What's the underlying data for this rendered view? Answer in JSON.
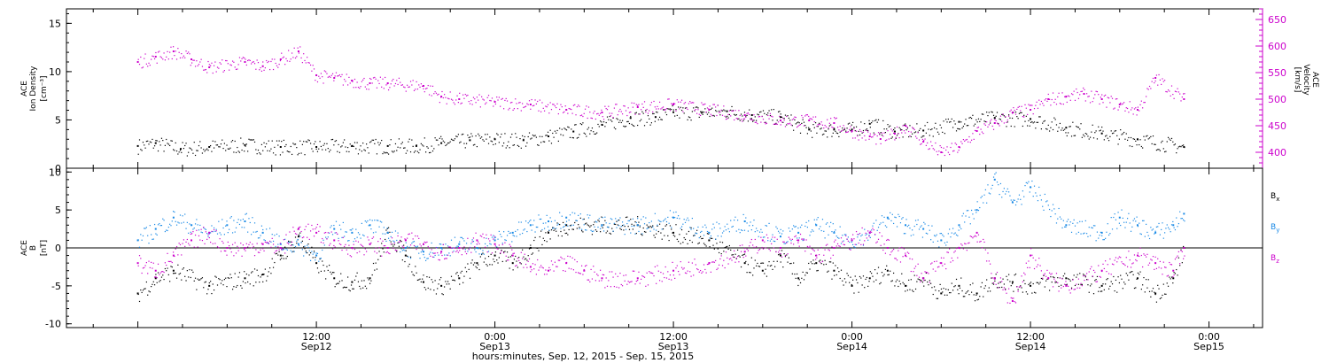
{
  "chart_data": [
    {
      "type": "scatter",
      "panel": "top",
      "ylabel": [
        "ACE",
        "Ion Density",
        "[cm⁻³]"
      ],
      "y2label": [
        "ACE",
        "Velocity",
        "[km/s]"
      ],
      "ylim": [
        0,
        16.5
      ],
      "y2lim": [
        370,
        670
      ],
      "yticks": [
        "0",
        "5",
        "10",
        "15"
      ],
      "y2ticks": [
        "400",
        "450",
        "500",
        "550",
        "600",
        "650"
      ],
      "colors": {
        "density": "#000000",
        "velocity": "#cc00cc"
      },
      "series": [
        {
          "key": "density",
          "color": "#000000",
          "x": [
            0,
            0.05,
            0.12,
            0.2,
            0.3,
            0.4,
            0.5,
            0.6,
            0.7,
            0.78,
            0.85,
            0.93,
            1.0,
            1.08,
            1.15,
            1.22,
            1.3,
            1.38,
            1.45,
            1.5,
            1.58,
            1.65,
            1.72,
            1.8,
            1.88,
            1.95,
            2.0,
            2.05,
            2.12,
            2.2,
            2.3,
            2.4,
            2.5,
            2.6,
            2.7,
            2.8,
            2.93
          ],
          "y": [
            2.3,
            2.6,
            2.0,
            2.2,
            2.4,
            2.2,
            2.2,
            2.3,
            2.3,
            2.3,
            2.6,
            2.9,
            3.0,
            2.9,
            3.3,
            3.8,
            4.5,
            5.2,
            5.3,
            5.8,
            5.8,
            5.9,
            5.5,
            5.3,
            4.0,
            4.0,
            4.0,
            4.6,
            3.8,
            3.9,
            4.8,
            5.2,
            5.1,
            4.2,
            3.6,
            3.0,
            2.2
          ]
        },
        {
          "key": "velocity",
          "color": "#cc00cc",
          "x": [
            0,
            0.05,
            0.1,
            0.15,
            0.2,
            0.3,
            0.35,
            0.4,
            0.45,
            0.5,
            0.55,
            0.6,
            0.65,
            0.7,
            0.8,
            0.85,
            0.9,
            1.0,
            1.1,
            1.2,
            1.3,
            1.4,
            1.5,
            1.6,
            1.7,
            1.8,
            1.88,
            1.95,
            2.0,
            2.05,
            2.08,
            2.12,
            2.15,
            2.2,
            2.25,
            2.3,
            2.35,
            2.4,
            2.45,
            2.5,
            2.55,
            2.6,
            2.65,
            2.7,
            2.75,
            2.8,
            2.85,
            2.93
          ],
          "y": [
            570,
            580,
            590,
            575,
            560,
            570,
            562,
            575,
            590,
            545,
            540,
            535,
            530,
            530,
            525,
            505,
            500,
            495,
            490,
            480,
            475,
            485,
            490,
            480,
            470,
            460,
            460,
            455,
            440,
            430,
            425,
            435,
            450,
            420,
            400,
            410,
            440,
            455,
            475,
            480,
            500,
            505,
            510,
            500,
            490,
            480,
            540,
            500
          ]
        }
      ]
    },
    {
      "type": "scatter",
      "panel": "bottom",
      "ylabel": [
        "ACE",
        "B",
        "[nT]"
      ],
      "ylim": [
        -10.5,
        10.5
      ],
      "yticks": [
        "-10",
        "-5",
        "0",
        "5",
        "10"
      ],
      "legend": [
        {
          "key": "bx",
          "label": "Bx",
          "base": "B",
          "sub": "x",
          "color": "#000000"
        },
        {
          "key": "by",
          "label": "By",
          "base": "B",
          "sub": "y",
          "color": "#1a8ae6"
        },
        {
          "key": "bz",
          "label": "Bz",
          "base": "B",
          "sub": "z",
          "color": "#cc00cc"
        }
      ],
      "series": [
        {
          "key": "bx",
          "color": "#000000",
          "x": [
            0,
            0.05,
            0.1,
            0.2,
            0.3,
            0.35,
            0.4,
            0.45,
            0.5,
            0.55,
            0.6,
            0.65,
            0.7,
            0.75,
            0.8,
            0.85,
            0.9,
            0.95,
            1.0,
            1.05,
            1.1,
            1.15,
            1.2,
            1.3,
            1.4,
            1.5,
            1.6,
            1.7,
            1.75,
            1.8,
            1.85,
            1.9,
            1.95,
            2.0,
            2.05,
            2.1,
            2.15,
            2.2,
            2.25,
            2.3,
            2.35,
            2.4,
            2.45,
            2.5,
            2.6,
            2.7,
            2.8,
            2.85,
            2.9,
            2.93
          ],
          "y": [
            -6,
            -4,
            -3,
            -5,
            -4,
            -3.5,
            -1,
            1.5,
            -2,
            -4,
            -4.5,
            -4,
            2,
            -1,
            -4.5,
            -5,
            -4,
            -2,
            -1,
            -2,
            0,
            2,
            3,
            3,
            3,
            2,
            1,
            -2,
            -3,
            -1,
            -4,
            -2,
            -3,
            -5,
            -4,
            -3,
            -5,
            -4,
            -6,
            -5,
            -6,
            -4,
            -4.5,
            -5,
            -4,
            -5,
            -4,
            -6,
            -4,
            0
          ]
        },
        {
          "key": "by",
          "color": "#1a8ae6",
          "x": [
            0,
            0.05,
            0.1,
            0.15,
            0.2,
            0.25,
            0.3,
            0.35,
            0.4,
            0.45,
            0.5,
            0.55,
            0.6,
            0.65,
            0.7,
            0.75,
            0.8,
            0.85,
            0.9,
            0.95,
            1.0,
            1.05,
            1.1,
            1.15,
            1.2,
            1.3,
            1.4,
            1.5,
            1.6,
            1.7,
            1.8,
            1.85,
            1.9,
            1.95,
            2.0,
            2.05,
            2.1,
            2.15,
            2.2,
            2.25,
            2.3,
            2.35,
            2.4,
            2.45,
            2.5,
            2.6,
            2.7,
            2.75,
            2.8,
            2.85,
            2.9,
            2.93
          ],
          "y": [
            1,
            2.5,
            4,
            3,
            2,
            3,
            3.5,
            2,
            0.5,
            0.5,
            -1,
            2.5,
            2,
            3,
            2,
            0,
            -0.5,
            0,
            0.5,
            0,
            1,
            2,
            3,
            3.5,
            4,
            3,
            3,
            4,
            2,
            3.5,
            1.5,
            2,
            3,
            2,
            1,
            2,
            4,
            3,
            2.5,
            1,
            3,
            5,
            9,
            6,
            8,
            3,
            2,
            4,
            3,
            2,
            3,
            4.5
          ]
        },
        {
          "key": "bz",
          "color": "#cc00cc",
          "x": [
            0,
            0.05,
            0.1,
            0.15,
            0.2,
            0.25,
            0.3,
            0.35,
            0.4,
            0.45,
            0.5,
            0.55,
            0.6,
            0.65,
            0.7,
            0.75,
            0.8,
            0.85,
            0.9,
            0.95,
            1.0,
            1.05,
            1.1,
            1.15,
            1.2,
            1.25,
            1.3,
            1.4,
            1.5,
            1.6,
            1.7,
            1.75,
            1.8,
            1.85,
            1.9,
            1.95,
            2.0,
            2.05,
            2.1,
            2.15,
            2.2,
            2.25,
            2.3,
            2.35,
            2.4,
            2.45,
            2.5,
            2.55,
            2.6,
            2.7,
            2.8,
            2.85,
            2.9,
            2.93
          ],
          "y": [
            -2,
            -3,
            -1,
            1,
            2,
            0,
            0,
            0.5,
            0,
            2.5,
            2,
            1,
            0,
            0.5,
            0,
            1,
            0.5,
            -0.5,
            0,
            1,
            0.5,
            -1,
            -2.5,
            -3,
            -2,
            -3,
            -4,
            -4,
            -3,
            -2,
            -0.5,
            1,
            0,
            1,
            -1,
            0,
            1,
            2,
            0,
            -1,
            -4,
            -2,
            0,
            2,
            -4,
            -7,
            -1,
            -4,
            -5,
            -3,
            -1,
            -2,
            -3,
            0
          ]
        }
      ]
    }
  ],
  "xaxis": {
    "label": "hours:minutes, Sep. 12, 2015 - Sep. 15, 2015",
    "range": [
      -0.2,
      3.15
    ],
    "ticks": [
      {
        "x": 0.5,
        "time": "12:00",
        "date": "Sep12"
      },
      {
        "x": 1.0,
        "time": "0:00",
        "date": "Sep13"
      },
      {
        "x": 1.5,
        "time": "12:00",
        "date": "Sep13"
      },
      {
        "x": 2.0,
        "time": "0:00",
        "date": "Sep14"
      },
      {
        "x": 2.5,
        "time": "12:00",
        "date": "Sep14"
      },
      {
        "x": 3.0,
        "time": "0:00",
        "date": "Sep15"
      }
    ]
  }
}
